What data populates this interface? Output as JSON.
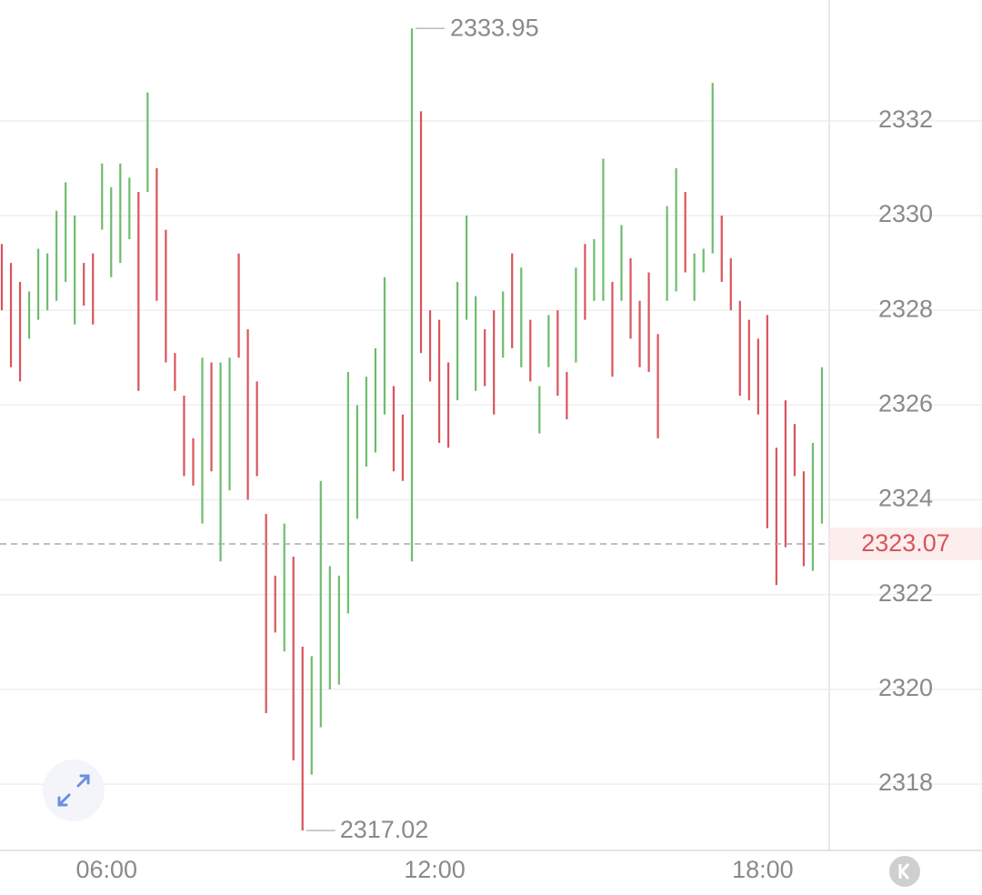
{
  "chart_data": {
    "type": "range-bar",
    "x": [
      245,
      255,
      265,
      275,
      285,
      295,
      305,
      315,
      325,
      335,
      345,
      355,
      365,
      375,
      385,
      395,
      405,
      415,
      425,
      435,
      445,
      455,
      465,
      475,
      485,
      495,
      505,
      515,
      525,
      535,
      545,
      555,
      565,
      575,
      585,
      595,
      605,
      615,
      625,
      635,
      645,
      655,
      665,
      675,
      685,
      695,
      705,
      715,
      725,
      735,
      745,
      755,
      765,
      775,
      785,
      795,
      805,
      815,
      825,
      835,
      845,
      855,
      865,
      875,
      885,
      895,
      905,
      915,
      925,
      935,
      945,
      955,
      965,
      975,
      985,
      995,
      1005,
      1015,
      1025,
      1035,
      1045,
      1055,
      1065,
      1075,
      1085,
      1095,
      1105,
      1115,
      1125,
      1135,
      1145
    ],
    "high": [
      2329.4,
      2329.0,
      2328.6,
      2328.4,
      2329.3,
      2329.2,
      2330.1,
      2330.7,
      2330.0,
      2329.0,
      2329.2,
      2331.1,
      2330.6,
      2331.1,
      2330.8,
      2330.5,
      2332.6,
      2331.0,
      2329.7,
      2327.1,
      2326.2,
      2325.3,
      2327.0,
      2326.9,
      2326.9,
      2327.0,
      2329.2,
      2327.6,
      2326.5,
      2323.7,
      2322.4,
      2323.5,
      2322.8,
      2320.9,
      2320.7,
      2324.4,
      2322.6,
      2322.4,
      2326.7,
      2326.0,
      2326.6,
      2327.2,
      2328.7,
      2326.4,
      2325.8,
      2333.95,
      2332.2,
      2328.0,
      2327.8,
      2326.9,
      2328.6,
      2330.0,
      2328.3,
      2327.6,
      2328.0,
      2328.4,
      2329.2,
      2328.9,
      2327.8,
      2326.4,
      2327.9,
      2328.0,
      2326.7,
      2328.9,
      2329.4,
      2329.5,
      2331.2,
      2328.6,
      2329.8,
      2329.1,
      2328.2,
      2328.8,
      2327.5,
      2330.2,
      2331.0,
      2330.5,
      2329.2,
      2329.3,
      2332.8,
      2330.0,
      2329.1,
      2328.2,
      2327.8,
      2327.4,
      2327.9,
      2325.1,
      2326.1,
      2325.6,
      2324.6,
      2325.2,
      2326.8
    ],
    "low": [
      2328.0,
      2326.8,
      2326.5,
      2327.4,
      2327.8,
      2328.0,
      2328.2,
      2328.6,
      2327.7,
      2328.1,
      2327.7,
      2329.7,
      2328.7,
      2329.0,
      2329.5,
      2326.3,
      2330.5,
      2328.2,
      2326.9,
      2326.3,
      2324.5,
      2324.3,
      2323.5,
      2324.6,
      2322.7,
      2324.2,
      2327.0,
      2324.0,
      2324.5,
      2319.5,
      2321.2,
      2320.8,
      2318.5,
      2317.02,
      2318.2,
      2319.2,
      2320.0,
      2320.1,
      2321.6,
      2323.6,
      2324.7,
      2325.0,
      2325.8,
      2324.6,
      2324.4,
      2322.7,
      2327.1,
      2326.5,
      2325.2,
      2325.1,
      2326.1,
      2327.8,
      2326.3,
      2326.4,
      2325.8,
      2327.0,
      2327.2,
      2326.8,
      2326.5,
      2325.4,
      2326.8,
      2326.2,
      2325.7,
      2326.9,
      2327.8,
      2328.2,
      2328.2,
      2326.6,
      2328.2,
      2327.4,
      2326.8,
      2326.7,
      2325.3,
      2328.2,
      2328.4,
      2328.8,
      2328.2,
      2328.8,
      2329.2,
      2328.6,
      2328.0,
      2326.2,
      2326.1,
      2325.8,
      2323.4,
      2322.2,
      2323.0,
      2324.5,
      2322.6,
      2322.5,
      2323.5
    ],
    "up": [
      false,
      false,
      false,
      true,
      true,
      true,
      true,
      true,
      true,
      false,
      false,
      true,
      true,
      true,
      true,
      false,
      true,
      false,
      false,
      false,
      false,
      false,
      true,
      false,
      true,
      true,
      false,
      false,
      false,
      false,
      false,
      true,
      false,
      false,
      true,
      true,
      true,
      true,
      true,
      true,
      true,
      true,
      true,
      false,
      false,
      true,
      false,
      false,
      false,
      false,
      true,
      true,
      true,
      false,
      false,
      true,
      false,
      true,
      false,
      true,
      true,
      false,
      false,
      true,
      false,
      true,
      true,
      false,
      true,
      false,
      false,
      false,
      false,
      true,
      true,
      false,
      true,
      true,
      true,
      false,
      false,
      false,
      false,
      false,
      false,
      false,
      false,
      false,
      false,
      true,
      true
    ],
    "up_color": "#6cbd6c",
    "down_color": "#d9545c",
    "max_index": 45,
    "min_index": 33,
    "last_price": 2323.07,
    "last_price_color": "#d9545c",
    "xlim": [
      243,
      1151
    ],
    "xticks": [
      {
        "value": 360,
        "label": "06:00"
      },
      {
        "value": 720,
        "label": "12:00"
      },
      {
        "value": 1080,
        "label": "18:00"
      }
    ],
    "ylim": [
      2316.6,
      2334.55
    ],
    "yticks": [
      2318,
      2320,
      2322,
      2324,
      2326,
      2328,
      2330,
      2332
    ],
    "grid": true
  }
}
